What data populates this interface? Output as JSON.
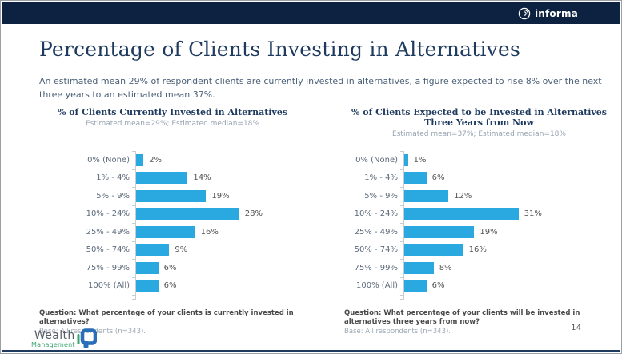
{
  "header": {
    "brand": "informa"
  },
  "slide": {
    "title": "Percentage of Clients Investing in Alternatives",
    "subtitle": "An estimated mean 29% of respondent clients are currently invested in alternatives, a figure expected to rise 8% over the next three years to an estimated mean 37%.",
    "page_number": "14"
  },
  "footer_logo": {
    "line1": "Wealth",
    "line2": "Management"
  },
  "colors": {
    "header_navy": "#0d2240",
    "title_navy": "#1e3a5f",
    "bar_blue": "#29a9df",
    "axis_gray": "#c8cdd3",
    "logo_green": "#3ba572",
    "logo_blue": "#2a6db8"
  },
  "chart_data": [
    {
      "type": "bar",
      "orientation": "horizontal",
      "title": "% of Clients Currently Invested in Alternatives",
      "title_lines": [
        "% of Clients Currently Invested in Alternatives",
        ""
      ],
      "subtitle": "Estimated mean=29%; Estimated median=18%",
      "categories": [
        "0% (None)",
        "1% - 4%",
        "5% - 9%",
        "10% - 24%",
        "25% - 49%",
        "50% - 74%",
        "75% - 99%",
        "100% (All)"
      ],
      "values": [
        2,
        14,
        19,
        28,
        16,
        9,
        6,
        6
      ],
      "value_labels": [
        "2%",
        "14%",
        "19%",
        "28%",
        "16%",
        "9%",
        "6%",
        "6%"
      ],
      "xlim": [
        0,
        31
      ],
      "grid": false,
      "question": "Question: What percentage of your clients is currently invested in alternatives?",
      "base": "Base: All respondents (n=343)."
    },
    {
      "type": "bar",
      "orientation": "horizontal",
      "title": "% of Clients Expected to be Invested in Alternatives Three Years from Now",
      "title_lines": [
        "% of Clients Expected to be Invested in Alternatives",
        "Three Years from Now"
      ],
      "subtitle": "Estimated mean=37%; Estimated median=18%",
      "categories": [
        "0% (None)",
        "1% - 4%",
        "5% - 9%",
        "10% - 24%",
        "25% - 49%",
        "50% - 74%",
        "75% - 99%",
        "100% (All)"
      ],
      "values": [
        1,
        6,
        12,
        31,
        19,
        16,
        8,
        6
      ],
      "value_labels": [
        "1%",
        "6%",
        "12%",
        "31%",
        "19%",
        "16%",
        "8%",
        "6%"
      ],
      "xlim": [
        0,
        31
      ],
      "grid": false,
      "question": "Question: What percentage of your clients will be invested in alternatives three years from now?",
      "base": "Base: All respondents (n=343)."
    }
  ]
}
